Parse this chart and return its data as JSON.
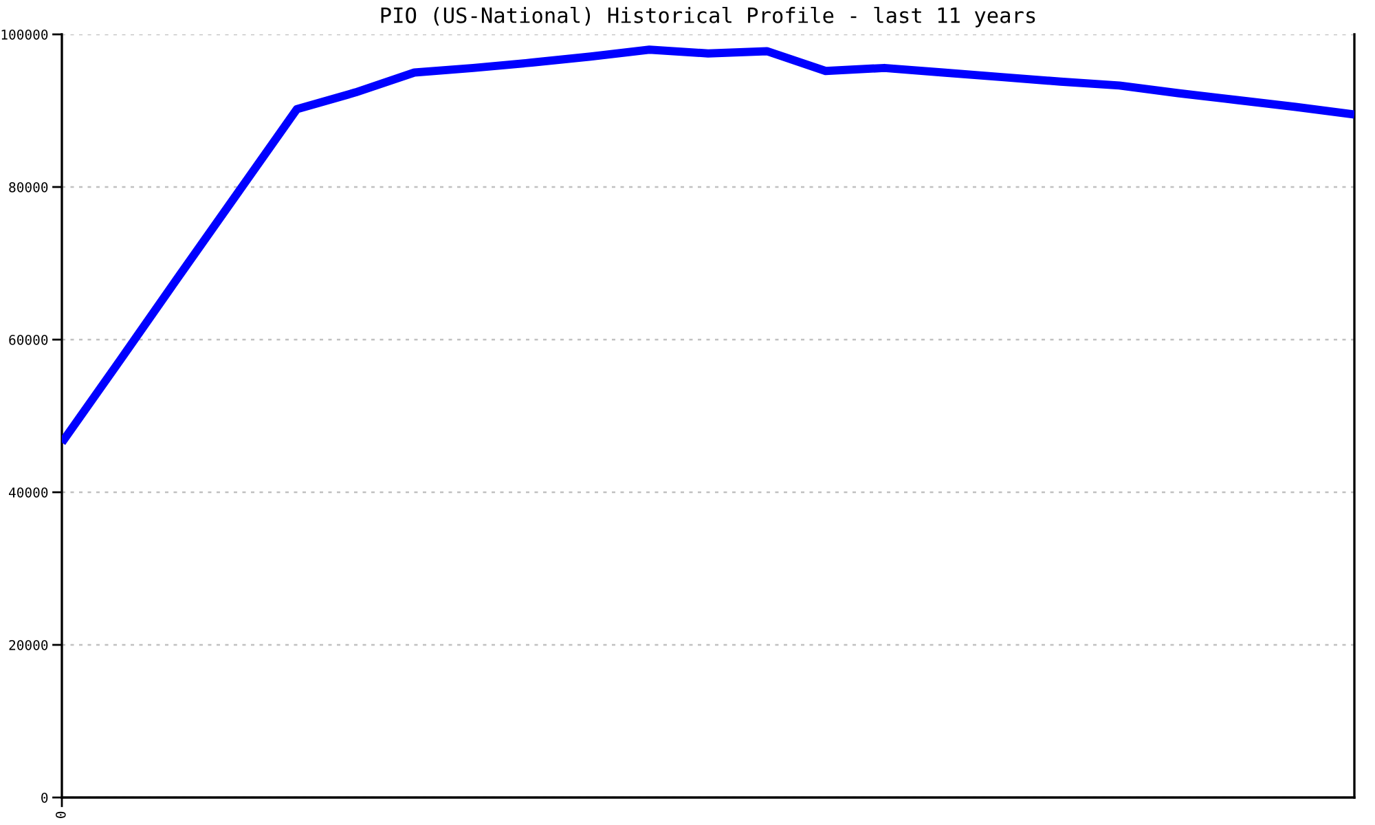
{
  "chart_data": {
    "type": "line",
    "title": "PIO (US-National) Historical Profile - last 11 years",
    "categories": [
      "0",
      null,
      null,
      null,
      null,
      null,
      null,
      null,
      null,
      null,
      null,
      null,
      null,
      null,
      null,
      null,
      null,
      null,
      null,
      null,
      null,
      null,
      null
    ],
    "series": [
      {
        "color": "#0000ff",
        "values": [
          46500,
          57400,
          68400,
          79300,
          90200,
          92400,
          95000,
          95600,
          96300,
          97100,
          98000,
          97500,
          97800,
          95200,
          95600,
          95000,
          94400,
          93800,
          93300,
          92300,
          91400,
          90500,
          89500
        ]
      }
    ],
    "ylim": [
      0,
      100000
    ],
    "yticks": [
      0,
      20000,
      40000,
      60000,
      80000,
      100000
    ],
    "grid": "y"
  }
}
